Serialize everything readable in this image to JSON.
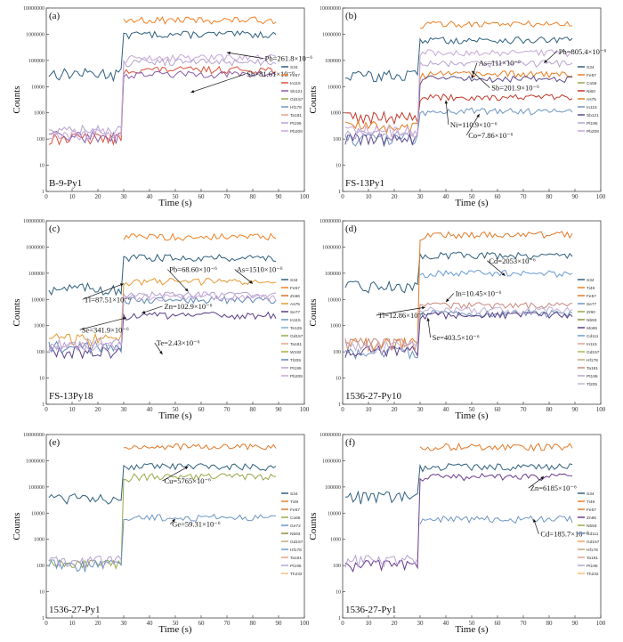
{
  "figure_title": "",
  "chart_data": [
    {
      "type": "line",
      "panel_label": "(a)",
      "sample": "B-9-Py1",
      "xlabel": "Time (s)",
      "ylabel": "Counts",
      "xticks": [
        "0",
        "10",
        "20",
        "30",
        "40",
        "50",
        "60",
        "70",
        "80",
        "90",
        "100"
      ],
      "yticks": [
        "1",
        "10",
        "100",
        "1000",
        "10000",
        "100000",
        "1000000",
        "10000000"
      ],
      "xlim": [
        0,
        100
      ],
      "ylim": [
        1,
        10000000
      ],
      "legend": [
        "S34",
        "Fe57",
        "In115",
        "Sb121",
        "Gd157",
        "Hf178",
        "Ta181",
        "Pt195",
        "Pb208"
      ],
      "colors": [
        "#2f5f7e",
        "#ef8126",
        "#d9533c",
        "#8a5aa8",
        "#9aa54a",
        "#6e95c2",
        "#e4a08a",
        "#b6a2cf",
        "#c6a7d6"
      ],
      "series_levels": [
        {
          "name": "S34",
          "pre": 30000,
          "post": 1000000
        },
        {
          "name": "Fe57",
          "pre": null,
          "post": 3500000
        },
        {
          "name": "In115",
          "pre": 100,
          "post": 45000
        },
        {
          "name": "Sb121",
          "pre": 120,
          "post": 30000
        },
        {
          "name": "Gd157",
          "pre": null,
          "post": null
        },
        {
          "name": "Hf178",
          "pre": null,
          "post": null
        },
        {
          "name": "Ta181",
          "pre": null,
          "post": null
        },
        {
          "name": "Pt195",
          "pre": 200,
          "post": 90000
        },
        {
          "name": "Pb208",
          "pre": 150,
          "post": 130000
        }
      ],
      "annotations": [
        {
          "text": "Pb=261.8×10⁻⁶",
          "x": 70,
          "y": 200000,
          "tx": 84,
          "ty": 120000
        },
        {
          "text": "Sb=81.61×10⁻⁶",
          "x": 56,
          "y": 6000,
          "tx": 77,
          "ty": 30000
        }
      ]
    },
    {
      "type": "line",
      "panel_label": "(b)",
      "sample": "FS-13Py1",
      "xlabel": "Time (s)",
      "ylabel": "Counts",
      "xticks": [
        "0",
        "10",
        "20",
        "30",
        "40",
        "50",
        "60",
        "70",
        "80",
        "90",
        "100"
      ],
      "yticks": [
        "1",
        "10",
        "100",
        "1000",
        "10000",
        "100000",
        "1000000",
        "10000000"
      ],
      "xlim": [
        0,
        100
      ],
      "ylim": [
        1,
        10000000
      ],
      "legend": [
        "S34",
        "Fe57",
        "Co59",
        "Ni60",
        "As75",
        "In115",
        "Sb121",
        "Pt195",
        "Pb208"
      ],
      "colors": [
        "#2f5f7e",
        "#ef8126",
        "#9aa54a",
        "#c0392b",
        "#e67e22",
        "#6e95c2",
        "#5f4b8b",
        "#b6a2cf",
        "#c6a7d6"
      ],
      "series_levels": [
        {
          "name": "S34",
          "pre": 25000,
          "post": 600000
        },
        {
          "name": "Fe57",
          "pre": null,
          "post": 2500000
        },
        {
          "name": "Co59",
          "pre": null,
          "post": null
        },
        {
          "name": "Ni60",
          "pre": 700,
          "post": 4000
        },
        {
          "name": "As75",
          "pre": 300,
          "post": 30000
        },
        {
          "name": "In115",
          "pre": 100,
          "post": 1200
        },
        {
          "name": "Sb121",
          "pre": 100,
          "post": 20000
        },
        {
          "name": "Pt195",
          "pre": 150,
          "post": 80000
        },
        {
          "name": "Pb208",
          "pre": 200,
          "post": 200000
        }
      ],
      "annotations": [
        {
          "text": "Pb=805.4×10⁻⁶",
          "x": 78,
          "y": 80000,
          "tx": 83,
          "ty": 220000
        },
        {
          "text": "As=111×10⁻⁶",
          "x": 50,
          "y": 20000,
          "tx": 52,
          "ty": 80000
        },
        {
          "text": "Sb=201.9×10⁻⁶",
          "x": 50,
          "y": 40000,
          "tx": 57,
          "ty": 9000
        },
        {
          "text": "Ni=110.9×10⁻⁶",
          "x": 40,
          "y": 3000,
          "tx": 41,
          "ty": 350
        },
        {
          "text": "Co=7.86×10⁻⁶",
          "x": 53,
          "y": 900,
          "tx": 48,
          "ty": 140
        }
      ]
    },
    {
      "type": "line",
      "panel_label": "(c)",
      "sample": "FS-13Py18",
      "xlabel": "Time (s)",
      "ylabel": "Counts",
      "xticks": [
        "0",
        "10",
        "20",
        "30",
        "40",
        "50",
        "60",
        "70",
        "80",
        "90",
        "100"
      ],
      "yticks": [
        "1",
        "10",
        "100",
        "1000",
        "10000",
        "100000",
        "1000000",
        "10000000"
      ],
      "xlim": [
        0,
        100
      ],
      "ylim": [
        1,
        10000000
      ],
      "legend": [
        "S34",
        "Fe57",
        "Zn66",
        "As75",
        "Se77",
        "In115",
        "Te125",
        "Gd157",
        "Ta181",
        "W182",
        "Tl205",
        "Pt195",
        "Pb208"
      ],
      "colors": [
        "#2f5f7e",
        "#ef8126",
        "#d0702f",
        "#e39a33",
        "#5a3e86",
        "#6e95c2",
        "#7db2c8",
        "#9aa54a",
        "#e4a08a",
        "#a3b23c",
        "#5e88b5",
        "#b6a2cf",
        "#c6a7d6"
      ],
      "series_levels": [
        {
          "name": "S34",
          "pre": 25000,
          "post": 400000
        },
        {
          "name": "Fe57",
          "pre": null,
          "post": 2500000
        },
        {
          "name": "Zn66",
          "pre": null,
          "post": null
        },
        {
          "name": "As75",
          "pre": 300,
          "post": 50000
        },
        {
          "name": "Se77",
          "pre": 100,
          "post": 2500
        },
        {
          "name": "In115",
          "pre": null,
          "post": null
        },
        {
          "name": "Te125",
          "pre": null,
          "post": null
        },
        {
          "name": "Gd157",
          "pre": null,
          "post": null
        },
        {
          "name": "Ta181",
          "pre": null,
          "post": null
        },
        {
          "name": "W182",
          "pre": null,
          "post": null
        },
        {
          "name": "Tl205",
          "pre": 150,
          "post": 10000
        },
        {
          "name": "Pt195",
          "pre": 200,
          "post": 15000
        },
        {
          "name": "Pb208",
          "pre": 150,
          "post": 12000
        }
      ],
      "annotations": [
        {
          "text": "Pb=68.60×10⁻⁶",
          "x": 55,
          "y": 20000,
          "tx": 47,
          "ty": 140000
        },
        {
          "text": "As=1510×10⁻⁶",
          "x": 80,
          "y": 40000,
          "tx": 73,
          "ty": 140000
        },
        {
          "text": "Tl=87.51×10⁻⁶",
          "x": 30,
          "y": 40000,
          "tx": 14,
          "ty": 10000
        },
        {
          "text": "Zn=102.9×10⁻⁶",
          "x": 37,
          "y": 3000,
          "tx": 45,
          "ty": 5500
        },
        {
          "text": "Se=341.9×10⁻⁶",
          "x": 31,
          "y": 2000,
          "tx": 13,
          "ty": 700
        },
        {
          "text": "Te=2.43×10⁻⁶",
          "x": 45,
          "y": 80,
          "tx": 42,
          "ty": 220
        }
      ]
    },
    {
      "type": "line",
      "panel_label": "(d)",
      "sample": "1536-27-Py10",
      "xlabel": "Time (s)",
      "ylabel": "Counts",
      "xticks": [
        "0",
        "10",
        "20",
        "30",
        "40",
        "50",
        "60",
        "70",
        "80",
        "90",
        "100"
      ],
      "yticks": [
        "1",
        "10",
        "100",
        "1000",
        "10000",
        "100000",
        "1000000",
        "10000000"
      ],
      "xlim": [
        0,
        100
      ],
      "ylim": [
        1,
        10000000
      ],
      "legend": [
        "S34",
        "Ti49",
        "Fe57",
        "Se77",
        "Zr90",
        "Nb93",
        "Mo95",
        "Cd111",
        "In115",
        "Gd157",
        "Hf178",
        "Ta181",
        "Pt195",
        "Tl205"
      ],
      "colors": [
        "#2f5f7e",
        "#ef8126",
        "#e07a2a",
        "#6e95c2",
        "#9aa54a",
        "#8e8e3c",
        "#5a3e86",
        "#6a9bd3",
        "#e4a08a",
        "#a7b95a",
        "#c4a87b",
        "#c9887e",
        "#b6a2cf",
        "#c2b2d6"
      ],
      "series_levels": [
        {
          "name": "S34",
          "pre": 30000,
          "post": 500000
        },
        {
          "name": "Ti49",
          "pre": null,
          "post": null
        },
        {
          "name": "Fe57",
          "pre": 200,
          "post": 3000000
        },
        {
          "name": "Se77",
          "pre": 100,
          "post": 3000
        },
        {
          "name": "Zr90",
          "pre": null,
          "post": null
        },
        {
          "name": "Nb93",
          "pre": null,
          "post": null
        },
        {
          "name": "Mo95",
          "pre": 100,
          "post": 2500
        },
        {
          "name": "Cd111",
          "pre": null,
          "post": 100000
        },
        {
          "name": "In115",
          "pre": null,
          "post": null
        },
        {
          "name": "Gd157",
          "pre": null,
          "post": null
        },
        {
          "name": "Hf178",
          "pre": null,
          "post": null
        },
        {
          "name": "Ta181",
          "pre": 200,
          "post": 6000
        },
        {
          "name": "Pt195",
          "pre": null,
          "post": null
        },
        {
          "name": "Tl205",
          "pre": 150,
          "post": 4000
        }
      ],
      "annotations": [
        {
          "text": "Cd=2053×10⁻⁶",
          "x": 63,
          "y": 80000,
          "tx": 56,
          "ty": 300000
        },
        {
          "text": "In=10.45×10⁻⁶",
          "x": 40,
          "y": 8000,
          "tx": 43,
          "ty": 17000
        },
        {
          "text": "Tl=12.86×10⁻⁶",
          "x": 32,
          "y": 5000,
          "tx": 13,
          "ty": 2500
        },
        {
          "text": "Se=403.5×10⁻⁶",
          "x": 33,
          "y": 2000,
          "tx": 34,
          "ty": 350
        }
      ]
    },
    {
      "type": "line",
      "panel_label": "(e)",
      "sample": "1536-27-Py1",
      "xlabel": "Time (s)",
      "ylabel": "Counts",
      "xticks": [
        "0",
        "10",
        "20",
        "30",
        "40",
        "50",
        "60",
        "70",
        "80",
        "90",
        "100"
      ],
      "yticks": [
        "1",
        "10",
        "100",
        "1000",
        "10000",
        "100000",
        "1000000",
        "10000000"
      ],
      "xlim": [
        0,
        100
      ],
      "ylim": [
        1,
        10000000
      ],
      "legend": [
        "S34",
        "Ti49",
        "Fe57",
        "Co65",
        "Ge72",
        "Nb93",
        "Gd157",
        "Hf178",
        "Ta181",
        "Pt195",
        "Th232"
      ],
      "colors": [
        "#2f5f7e",
        "#ef8126",
        "#e07a2a",
        "#9aa54a",
        "#6e95c2",
        "#8e8e3c",
        "#c4a87b",
        "#6a9bd3",
        "#e4a08a",
        "#b6a2cf",
        "#f0c27a"
      ],
      "series_levels": [
        {
          "name": "S34",
          "pre": 40000,
          "post": 600000
        },
        {
          "name": "Ti49",
          "pre": null,
          "post": null
        },
        {
          "name": "Fe57",
          "pre": null,
          "post": 3500000
        },
        {
          "name": "Co65",
          "pre": 100,
          "post": 250000
        },
        {
          "name": "Ge72",
          "pre": 100,
          "post": 7000
        },
        {
          "name": "Nb93",
          "pre": null,
          "post": null
        },
        {
          "name": "Gd157",
          "pre": null,
          "post": null
        },
        {
          "name": "Hf178",
          "pre": null,
          "post": null
        },
        {
          "name": "Ta181",
          "pre": null,
          "post": null
        },
        {
          "name": "Pt195",
          "pre": 150,
          "post": null
        },
        {
          "name": "Th232",
          "pre": null,
          "post": null
        }
      ],
      "annotations": [
        {
          "text": "Cu=5765×10⁻⁶",
          "x": 55,
          "y": 600000,
          "tx": 45,
          "ty": 170000
        },
        {
          "text": "Ge=59.31×10⁻⁶",
          "x": 50,
          "y": 6000,
          "tx": 48,
          "ty": 3800
        }
      ]
    },
    {
      "type": "line",
      "panel_label": "(f)",
      "sample": "1536-27-Py1",
      "xlabel": "Time (s)",
      "ylabel": "Counts",
      "xticks": [
        "0",
        "10",
        "20",
        "30",
        "40",
        "50",
        "60",
        "70",
        "80",
        "90",
        "100"
      ],
      "yticks": [
        "1",
        "10",
        "100",
        "1000",
        "10000",
        "100000",
        "1000000",
        "10000000"
      ],
      "xlim": [
        0,
        100
      ],
      "ylim": [
        1,
        10000000
      ],
      "legend": [
        "S34",
        "Ti49",
        "Fe57",
        "Zn66",
        "Nb93",
        "Cd111",
        "Gd157",
        "Hf178",
        "Ta181",
        "Pt195",
        "Th232"
      ],
      "colors": [
        "#2f5f7e",
        "#ef8126",
        "#e07a2a",
        "#6a3a8c",
        "#9aa54a",
        "#6e95c2",
        "#f0a25a",
        "#c4a87b",
        "#e4a08a",
        "#b6a2cf",
        "#f0c27a"
      ],
      "series_levels": [
        {
          "name": "S34",
          "pre": 40000,
          "post": 600000
        },
        {
          "name": "Ti49",
          "pre": null,
          "post": null
        },
        {
          "name": "Fe57",
          "pre": null,
          "post": 3500000
        },
        {
          "name": "Zn66",
          "pre": 100,
          "post": 250000
        },
        {
          "name": "Nb93",
          "pre": null,
          "post": null
        },
        {
          "name": "Cd111",
          "pre": null,
          "post": 6000
        },
        {
          "name": "Gd157",
          "pre": null,
          "post": null
        },
        {
          "name": "Hf178",
          "pre": null,
          "post": null
        },
        {
          "name": "Ta181",
          "pre": null,
          "post": null
        },
        {
          "name": "Pt195",
          "pre": 150,
          "post": null
        },
        {
          "name": "Th232",
          "pre": null,
          "post": null
        }
      ],
      "annotations": [
        {
          "text": "Zn=6185×10⁻⁶",
          "x": 78,
          "y": 250000,
          "tx": 72,
          "ty": 90000
        },
        {
          "text": "Cd=185.7×10⁻⁶",
          "x": 74,
          "y": 6000,
          "tx": 76,
          "ty": 1600
        }
      ]
    }
  ]
}
